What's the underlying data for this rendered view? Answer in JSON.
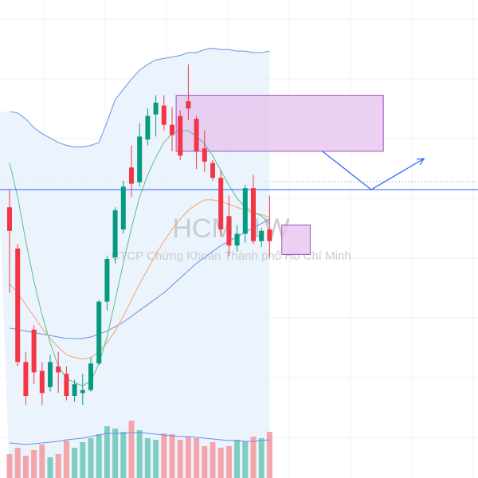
{
  "watermark": {
    "symbol": "HCM, 1W",
    "company": "CTCP Chứng Khoán Thành phố Hồ Chí Minh"
  },
  "colors": {
    "up": "#089981",
    "down": "#f23645",
    "vol_up": "#7fcdc0",
    "vol_down": "#f4a5ab",
    "band_line": "#6b8fe6",
    "band_fill": "#e6f1fb",
    "zone_fill": "#e6c6ee",
    "zone_stroke": "#a64bc4",
    "ma_fast": "#5cbf86",
    "ma_mid": "#f2a36e",
    "ma_slow": "#6b8fe6",
    "hline": "#2962ff",
    "projection": "#2962ff",
    "grid": "#eef0f3"
  },
  "chart_data": {
    "type": "candlestick",
    "symbol": "HCM",
    "interval": "1W",
    "title": "HCM, 1W",
    "subtitle": "CTCP Chứng Khoán Thành phố Hồ Chí Minh",
    "y_domain": [
      14,
      42
    ],
    "x_domain": [
      -1,
      34
    ],
    "candles": [
      {
        "i": 0,
        "o": 30.8,
        "h": 32.0,
        "l": 25.0,
        "c": 29.2
      },
      {
        "i": 1,
        "o": 28.0,
        "h": 28.3,
        "l": 20.0,
        "c": 20.3
      },
      {
        "i": 2,
        "o": 20.3,
        "h": 21.0,
        "l": 17.4,
        "c": 18.0
      },
      {
        "i": 3,
        "o": 22.5,
        "h": 22.8,
        "l": 18.8,
        "c": 19.6
      },
      {
        "i": 4,
        "o": 19.7,
        "h": 20.3,
        "l": 17.4,
        "c": 18.2
      },
      {
        "i": 5,
        "o": 18.6,
        "h": 20.8,
        "l": 18.3,
        "c": 20.3
      },
      {
        "i": 6,
        "o": 20.0,
        "h": 21.0,
        "l": 18.2,
        "c": 19.6
      },
      {
        "i": 7,
        "o": 19.5,
        "h": 20.0,
        "l": 17.7,
        "c": 18.0
      },
      {
        "i": 8,
        "o": 18.0,
        "h": 19.1,
        "l": 17.6,
        "c": 18.8
      },
      {
        "i": 9,
        "o": 18.2,
        "h": 19.5,
        "l": 17.4,
        "c": 18.4
      },
      {
        "i": 10,
        "o": 18.4,
        "h": 20.6,
        "l": 18.3,
        "c": 20.2
      },
      {
        "i": 11,
        "o": 20.2,
        "h": 24.5,
        "l": 20.1,
        "c": 24.4
      },
      {
        "i": 12,
        "o": 24.4,
        "h": 27.5,
        "l": 23.8,
        "c": 27.3
      },
      {
        "i": 13,
        "o": 27.4,
        "h": 30.8,
        "l": 27.0,
        "c": 30.6
      },
      {
        "i": 14,
        "o": 29.3,
        "h": 32.6,
        "l": 29.0,
        "c": 32.2
      },
      {
        "i": 15,
        "o": 33.5,
        "h": 35.0,
        "l": 31.5,
        "c": 32.4
      },
      {
        "i": 16,
        "o": 32.5,
        "h": 36.5,
        "l": 32.2,
        "c": 35.6
      },
      {
        "i": 17,
        "o": 35.4,
        "h": 37.5,
        "l": 35.0,
        "c": 37.0
      },
      {
        "i": 18,
        "o": 37.1,
        "h": 38.4,
        "l": 35.6,
        "c": 37.9
      },
      {
        "i": 19,
        "o": 37.7,
        "h": 38.4,
        "l": 36.0,
        "c": 36.4
      },
      {
        "i": 20,
        "o": 36.4,
        "h": 37.6,
        "l": 34.6,
        "c": 35.7
      },
      {
        "i": 21,
        "o": 37.0,
        "h": 37.4,
        "l": 34.0,
        "c": 34.3
      },
      {
        "i": 22,
        "o": 38.0,
        "h": 40.5,
        "l": 36.7,
        "c": 37.5
      },
      {
        "i": 23,
        "o": 36.8,
        "h": 37.0,
        "l": 33.4,
        "c": 34.6
      },
      {
        "i": 24,
        "o": 34.8,
        "h": 36.0,
        "l": 33.2,
        "c": 33.9
      },
      {
        "i": 25,
        "o": 33.8,
        "h": 34.0,
        "l": 32.6,
        "c": 32.8
      },
      {
        "i": 26,
        "o": 32.8,
        "h": 33.3,
        "l": 28.8,
        "c": 29.3
      },
      {
        "i": 27,
        "o": 30.2,
        "h": 31.6,
        "l": 27.5,
        "c": 28.2
      },
      {
        "i": 28,
        "o": 28.2,
        "h": 29.6,
        "l": 27.8,
        "c": 29.0
      },
      {
        "i": 29,
        "o": 29.0,
        "h": 32.3,
        "l": 28.4,
        "c": 32.1
      },
      {
        "i": 30,
        "o": 32.1,
        "h": 33.0,
        "l": 28.3,
        "c": 28.5
      },
      {
        "i": 31,
        "o": 28.5,
        "h": 29.4,
        "l": 28.1,
        "c": 29.2
      },
      {
        "i": 32,
        "o": 29.3,
        "h": 31.6,
        "l": 27.4,
        "c": 28.5
      }
    ],
    "volume": {
      "y_max": 100,
      "values": [
        30,
        38,
        28,
        35,
        42,
        26,
        30,
        47,
        38,
        45,
        50,
        55,
        65,
        62,
        58,
        72,
        60,
        50,
        48,
        56,
        55,
        48,
        52,
        50,
        40,
        45,
        38,
        40,
        48,
        46,
        52,
        50,
        58
      ],
      "ma": [
        44,
        43,
        42,
        43,
        44,
        45,
        46,
        48,
        49,
        50,
        52,
        54,
        56,
        56,
        56,
        57,
        57,
        56,
        55,
        54,
        53,
        52,
        52,
        51,
        50,
        49,
        48,
        47,
        47,
        46,
        46,
        47,
        48
      ]
    },
    "bollinger_upper": [
      37.3,
      37.2,
      36.8,
      36.2,
      35.8,
      35.5,
      35.2,
      35.0,
      34.9,
      34.9,
      35.0,
      35.2,
      36.6,
      38.1,
      38.8,
      39.5,
      40.1,
      40.5,
      40.8,
      40.9,
      41.0,
      41.1,
      41.3,
      41.3,
      41.5,
      41.6,
      41.5,
      41.5,
      41.4,
      41.4,
      41.3,
      41.3,
      41.4
    ],
    "ma_fast": [
      33.8,
      31.5,
      28.5,
      25.8,
      23.5,
      21.6,
      20.0,
      19.2,
      18.9,
      18.7,
      19.0,
      20.2,
      22.0,
      24.5,
      27.0,
      29.4,
      31.5,
      33.0,
      34.2,
      35.2,
      35.8,
      36.0,
      36.0,
      35.6,
      35.1,
      34.3,
      33.3,
      32.3,
      31.4,
      30.8,
      30.5,
      30.2,
      29.7
    ],
    "ma_mid": [
      25.6,
      25.0,
      24.2,
      23.4,
      22.6,
      21.9,
      21.3,
      20.8,
      20.6,
      20.5,
      20.6,
      21.0,
      21.6,
      22.4,
      23.4,
      24.5,
      25.6,
      26.6,
      27.6,
      28.5,
      29.3,
      30.0,
      30.6,
      31.0,
      31.3,
      31.3,
      31.2,
      31.0,
      30.8,
      30.6,
      30.4,
      30.3,
      30.1
    ],
    "ma_slow": [
      22.6,
      22.5,
      22.4,
      22.3,
      22.2,
      22.1,
      22.0,
      21.9,
      21.9,
      21.9,
      22.0,
      22.2,
      22.4,
      22.7,
      23.0,
      23.4,
      23.8,
      24.2,
      24.6,
      25.0,
      25.5,
      26.0,
      26.5,
      27.0,
      27.4,
      27.8,
      28.2,
      28.5,
      28.8,
      29.1,
      29.4,
      29.7,
      30.0
    ],
    "horizontal_line": 32.0,
    "zones": [
      {
        "x_start": 20.5,
        "x_end": 46.0,
        "y_low": 34.6,
        "y_high": 38.4
      },
      {
        "x_start": 33.5,
        "x_end": 37.0,
        "y_low": 27.6,
        "y_high": 29.6
      }
    ],
    "projection_path": [
      {
        "x": 38.5,
        "y": 34.6
      },
      {
        "x": 44.5,
        "y": 32.0
      },
      {
        "x": 51.0,
        "y": 34.1
      }
    ]
  }
}
